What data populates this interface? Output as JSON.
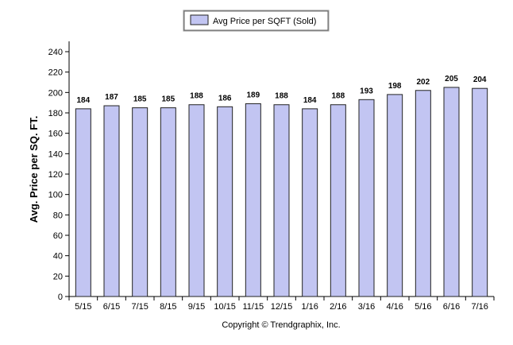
{
  "chart_data": {
    "type": "bar",
    "categories": [
      "5/15",
      "6/15",
      "7/15",
      "8/15",
      "9/15",
      "10/15",
      "11/15",
      "12/15",
      "1/16",
      "2/16",
      "3/16",
      "4/16",
      "5/16",
      "6/16",
      "7/16"
    ],
    "series": [
      {
        "name": "Avg Price per SQFT (Sold)",
        "values": [
          184,
          187,
          185,
          185,
          188,
          186,
          189,
          188,
          184,
          188,
          193,
          198,
          202,
          205,
          204
        ]
      }
    ],
    "data_labels": [
      "184",
      "187",
      "185",
      "185",
      "188",
      "186",
      "189",
      "188",
      "184",
      "188",
      "193",
      "198",
      "202",
      "205",
      "204"
    ],
    "ylabel": "Avg. Price per SQ. FT.",
    "ylim": [
      0,
      240
    ],
    "yticks": [
      0,
      20,
      40,
      60,
      80,
      100,
      120,
      140,
      160,
      180,
      200,
      220,
      240
    ],
    "grid": false,
    "legend_position": "top-center",
    "colors": {
      "bar_fill": "#c2c5f2",
      "bar_stroke": "#222222"
    }
  },
  "footer": {
    "copyright": "Copyright © Trendgraphix, Inc."
  }
}
